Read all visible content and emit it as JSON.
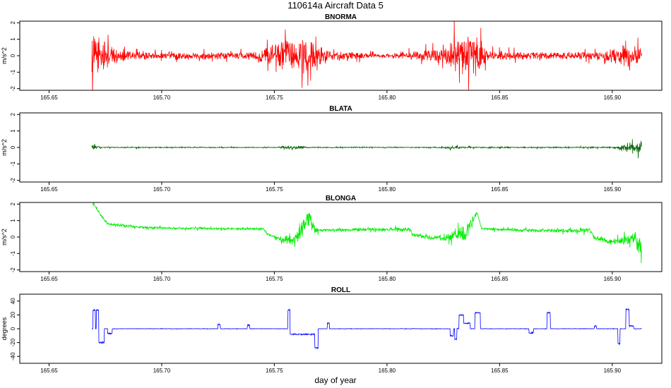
{
  "figure": {
    "title": "110614a   Aircraft Data 5",
    "xlabel": "day of year"
  },
  "chart_data": [
    {
      "type": "line",
      "title": "BNORMA",
      "ylabel": "m/s^2",
      "color": "#ff0000",
      "xlim": [
        165.637,
        165.922
      ],
      "ylim": [
        -2.1,
        2.1
      ],
      "xticks": [
        165.65,
        165.7,
        165.75,
        165.8,
        165.85,
        165.9
      ],
      "xtick_labels": [
        "165.65",
        "165.70",
        "165.75",
        "165.80",
        "165.85",
        "165.90"
      ],
      "yticks": [
        -2,
        -1,
        0,
        1,
        2
      ],
      "ytick_labels": [
        "-2",
        "-1",
        "0",
        "1",
        "2"
      ],
      "x_range": [
        165.669,
        165.913
      ],
      "profile": [
        [
          165.669,
          0
        ],
        [
          165.913,
          0
        ]
      ],
      "noise": [
        [
          165.669,
          1.8
        ],
        [
          165.675,
          1.2
        ],
        [
          165.68,
          0.5
        ],
        [
          165.69,
          0.3
        ],
        [
          165.7,
          0.25
        ],
        [
          165.74,
          0.3
        ],
        [
          165.755,
          1.3
        ],
        [
          165.765,
          1.4
        ],
        [
          165.775,
          0.4
        ],
        [
          165.8,
          0.15
        ],
        [
          165.825,
          0.6
        ],
        [
          165.83,
          1.5
        ],
        [
          165.84,
          1.9
        ],
        [
          165.845,
          0.4
        ],
        [
          165.87,
          0.3
        ],
        [
          165.895,
          0.3
        ],
        [
          165.905,
          1.0
        ],
        [
          165.913,
          0.8
        ]
      ]
    },
    {
      "type": "line",
      "title": "BLATA",
      "ylabel": "m/s^2",
      "color": "#006400",
      "xlim": [
        165.637,
        165.922
      ],
      "ylim": [
        -2.1,
        2.1
      ],
      "xticks": [
        165.65,
        165.7,
        165.75,
        165.8,
        165.85,
        165.9
      ],
      "xtick_labels": [
        "165.65",
        "165.70",
        "165.75",
        "165.80",
        "165.85",
        "165.90"
      ],
      "yticks": [
        -2,
        -1,
        0,
        1,
        2
      ],
      "ytick_labels": [
        "-2",
        "-1",
        "0",
        "1",
        "2"
      ],
      "x_range": [
        165.669,
        165.913
      ],
      "profile": [
        [
          165.669,
          0
        ],
        [
          165.913,
          0
        ]
      ],
      "noise": [
        [
          165.669,
          0.25
        ],
        [
          165.673,
          0.06
        ],
        [
          165.677,
          0.04
        ],
        [
          165.75,
          0.03
        ],
        [
          165.755,
          0.14
        ],
        [
          165.76,
          0.14
        ],
        [
          165.765,
          0.04
        ],
        [
          165.82,
          0.03
        ],
        [
          165.83,
          0.12
        ],
        [
          165.835,
          0.05
        ],
        [
          165.9,
          0.05
        ],
        [
          165.91,
          0.35
        ],
        [
          165.913,
          0.6
        ]
      ]
    },
    {
      "type": "line",
      "title": "BLONGA",
      "ylabel": "m/s^2",
      "color": "#00ee00",
      "xlim": [
        165.637,
        165.922
      ],
      "ylim": [
        -2.1,
        2.1
      ],
      "xticks": [
        165.65,
        165.7,
        165.75,
        165.8,
        165.85,
        165.9
      ],
      "xtick_labels": [
        "165.65",
        "165.70",
        "165.75",
        "165.80",
        "165.85",
        "165.90"
      ],
      "yticks": [
        -2,
        -1,
        0,
        1,
        2
      ],
      "ytick_labels": [
        "-2",
        "-1",
        "0",
        "1",
        "2"
      ],
      "x_range": [
        165.669,
        165.913
      ],
      "profile": [
        [
          165.669,
          2.2
        ],
        [
          165.672,
          1.5
        ],
        [
          165.676,
          0.8
        ],
        [
          165.69,
          0.6
        ],
        [
          165.7,
          0.55
        ],
        [
          165.725,
          0.5
        ],
        [
          165.745,
          0.5
        ],
        [
          165.747,
          0.15
        ],
        [
          165.755,
          -0.2
        ],
        [
          165.76,
          -0.1
        ],
        [
          165.765,
          1.2
        ],
        [
          165.768,
          0.4
        ],
        [
          165.785,
          0.45
        ],
        [
          165.8,
          0.45
        ],
        [
          165.81,
          0.45
        ],
        [
          165.812,
          0.1
        ],
        [
          165.825,
          -0.1
        ],
        [
          165.835,
          0.3
        ],
        [
          165.84,
          1.5
        ],
        [
          165.842,
          0.5
        ],
        [
          165.86,
          0.4
        ],
        [
          165.89,
          0.4
        ],
        [
          165.892,
          0.0
        ],
        [
          165.898,
          -0.3
        ],
        [
          165.905,
          -0.2
        ],
        [
          165.91,
          0.0
        ],
        [
          165.913,
          -0.8
        ]
      ],
      "noise": [
        [
          165.669,
          0.1
        ],
        [
          165.75,
          0.08
        ],
        [
          165.755,
          0.4
        ],
        [
          165.765,
          0.8
        ],
        [
          165.77,
          0.1
        ],
        [
          165.825,
          0.2
        ],
        [
          165.835,
          0.8
        ],
        [
          165.84,
          0.1
        ],
        [
          165.9,
          0.2
        ],
        [
          165.908,
          0.7
        ],
        [
          165.913,
          0.8
        ]
      ]
    },
    {
      "type": "line",
      "title": "ROLL",
      "ylabel": "degrees",
      "color": "#0000ff",
      "xlim": [
        165.637,
        165.922
      ],
      "ylim": [
        -50,
        50
      ],
      "xticks": [
        165.65,
        165.7,
        165.75,
        165.8,
        165.85,
        165.9
      ],
      "xtick_labels": [
        "165.65",
        "165.70",
        "165.75",
        "165.80",
        "165.85",
        "165.90"
      ],
      "yticks": [
        -40,
        -20,
        0,
        20,
        40
      ],
      "ytick_labels": [
        "-40",
        "-20",
        "0",
        "20",
        "40"
      ],
      "x_range": [
        165.669,
        165.913
      ],
      "profile": [
        [
          165.669,
          0
        ],
        [
          165.913,
          0
        ]
      ],
      "noise": [
        [
          165.669,
          0.4
        ],
        [
          165.913,
          0.4
        ]
      ],
      "events": [
        [
          165.6695,
          165.6705,
          27
        ],
        [
          165.671,
          165.672,
          27
        ],
        [
          165.672,
          165.6745,
          -20
        ],
        [
          165.676,
          165.678,
          -7
        ],
        [
          165.725,
          165.726,
          6
        ],
        [
          165.738,
          165.739,
          5
        ],
        [
          165.756,
          165.757,
          27
        ],
        [
          165.757,
          165.768,
          -8
        ],
        [
          165.768,
          165.7695,
          -28
        ],
        [
          165.7735,
          165.7745,
          8
        ],
        [
          165.828,
          165.8295,
          -10
        ],
        [
          165.832,
          165.834,
          20
        ],
        [
          165.834,
          165.837,
          8
        ],
        [
          165.839,
          165.8405,
          23
        ],
        [
          165.8405,
          165.8415,
          23
        ],
        [
          165.83,
          165.831,
          -15
        ],
        [
          165.863,
          165.865,
          -6
        ],
        [
          165.871,
          165.8725,
          23
        ],
        [
          165.892,
          165.893,
          4
        ],
        [
          165.9025,
          165.9035,
          -22
        ],
        [
          165.906,
          165.9075,
          28
        ],
        [
          165.9075,
          165.9095,
          4
        ]
      ]
    }
  ]
}
